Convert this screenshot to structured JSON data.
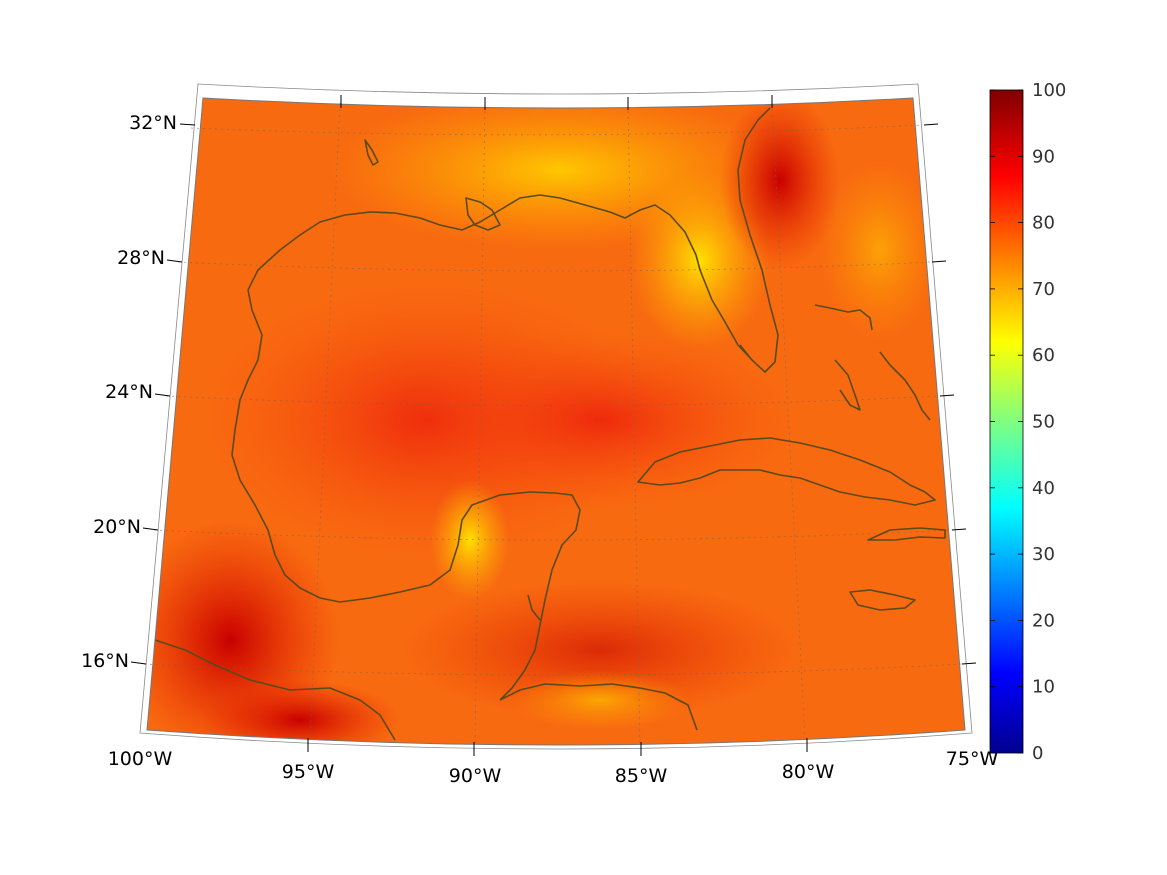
{
  "map": {
    "type": "heatmap",
    "projection": "conic",
    "region": "Gulf of Mexico and Caribbean",
    "lon_range": [
      -100,
      -75
    ],
    "lat_range": [
      14,
      33
    ],
    "coastline_color": "#5a4a1a",
    "grid": true
  },
  "axes": {
    "lat_ticks": [
      {
        "value": 32,
        "label": "32°N"
      },
      {
        "value": 28,
        "label": "28°N"
      },
      {
        "value": 24,
        "label": "24°N"
      },
      {
        "value": 20,
        "label": "20°N"
      },
      {
        "value": 16,
        "label": "16°N"
      }
    ],
    "lon_ticks": [
      {
        "value": -100,
        "label": "100°W"
      },
      {
        "value": -95,
        "label": "95°W"
      },
      {
        "value": -90,
        "label": "90°W"
      },
      {
        "value": -85,
        "label": "85°W"
      },
      {
        "value": -80,
        "label": "80°W"
      },
      {
        "value": -75,
        "label": "75°W"
      }
    ]
  },
  "colorbar": {
    "colormap": "jet",
    "range": [
      0,
      100
    ],
    "ticks": [
      "100",
      "90",
      "80",
      "70",
      "60",
      "50",
      "40",
      "30",
      "20",
      "10",
      "0"
    ],
    "placement": "right"
  },
  "chart_data": {
    "type": "heatmap",
    "xlabel": "",
    "ylabel": "",
    "value_range": [
      0,
      100
    ],
    "typical_values": {
      "open_gulf": 82,
      "northern_gulf_coast": 72,
      "florida_land": 68,
      "yucatan_coast": 65,
      "caribbean": 80,
      "atlantic_east_of_florida": 85
    }
  }
}
